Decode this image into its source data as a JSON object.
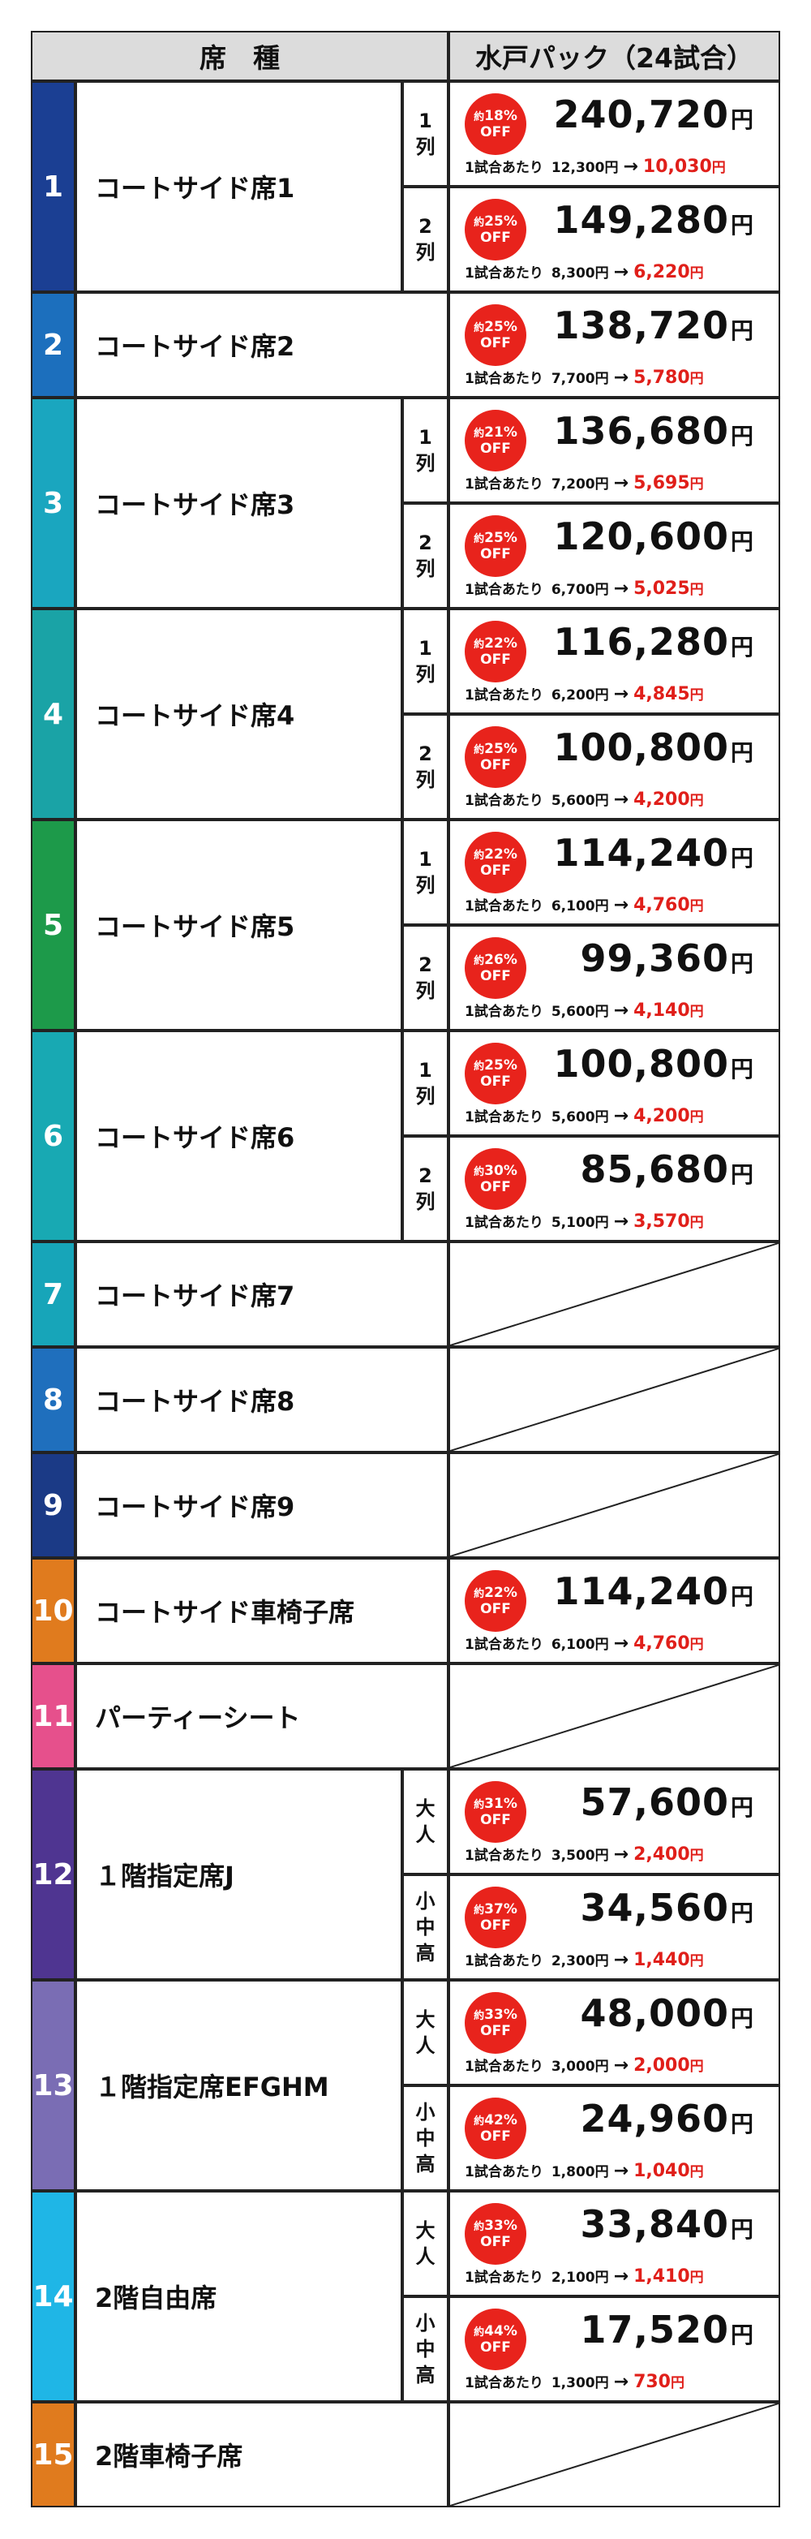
{
  "header": {
    "seat_type": "席　種",
    "pack": "水戸パック（24試合）"
  },
  "common": {
    "per_game_label": "1試合あたり",
    "yen": "円",
    "arrow": "→",
    "about": "約",
    "off": "OFF"
  },
  "seats": [
    {
      "num": "1",
      "name": "コートサイド席1",
      "color": "#1b3f93",
      "rows": [
        {
          "sub": "1\n列",
          "pct": "18%",
          "total": "240,720",
          "orig": "12,300",
          "disc": "10,030"
        },
        {
          "sub": "2\n列",
          "pct": "25%",
          "total": "149,280",
          "orig": "8,300",
          "disc": "6,220"
        }
      ]
    },
    {
      "num": "2",
      "name": "コートサイド席2",
      "color": "#1c6fbd",
      "rows": [
        {
          "sub": "",
          "pct": "25%",
          "total": "138,720",
          "orig": "7,700",
          "disc": "5,780"
        }
      ]
    },
    {
      "num": "3",
      "name": "コートサイド席3",
      "color": "#1aa6bf",
      "rows": [
        {
          "sub": "1\n列",
          "pct": "21%",
          "total": "136,680",
          "orig": "7,200",
          "disc": "5,695"
        },
        {
          "sub": "2\n列",
          "pct": "25%",
          "total": "120,600",
          "orig": "6,700",
          "disc": "5,025"
        }
      ]
    },
    {
      "num": "4",
      "name": "コートサイド席4",
      "color": "#1aa3a6",
      "rows": [
        {
          "sub": "1\n列",
          "pct": "22%",
          "total": "116,280",
          "orig": "6,200",
          "disc": "4,845"
        },
        {
          "sub": "2\n列",
          "pct": "25%",
          "total": "100,800",
          "orig": "5,600",
          "disc": "4,200"
        }
      ]
    },
    {
      "num": "5",
      "name": "コートサイド席5",
      "color": "#1d9a4a",
      "rows": [
        {
          "sub": "1\n列",
          "pct": "22%",
          "total": "114,240",
          "orig": "6,100",
          "disc": "4,760"
        },
        {
          "sub": "2\n列",
          "pct": "26%",
          "total": "99,360",
          "orig": "5,600",
          "disc": "4,140"
        }
      ]
    },
    {
      "num": "6",
      "name": "コートサイド席6",
      "color": "#18a9b3",
      "rows": [
        {
          "sub": "1\n列",
          "pct": "25%",
          "total": "100,800",
          "orig": "5,600",
          "disc": "4,200"
        },
        {
          "sub": "2\n列",
          "pct": "30%",
          "total": "85,680",
          "orig": "5,100",
          "disc": "3,570"
        }
      ]
    },
    {
      "num": "7",
      "name": "コートサイド席7",
      "color": "#17a5b9",
      "rows": []
    },
    {
      "num": "8",
      "name": "コートサイド席8",
      "color": "#1f6fbd",
      "rows": []
    },
    {
      "num": "9",
      "name": "コートサイド席9",
      "color": "#1b3a86",
      "rows": []
    },
    {
      "num": "10",
      "name": "コートサイド車椅子席",
      "color": "#e07b1e",
      "rows": [
        {
          "sub": "",
          "pct": "22%",
          "total": "114,240",
          "orig": "6,100",
          "disc": "4,760"
        }
      ]
    },
    {
      "num": "11",
      "name": "パーティーシート",
      "color": "#e6508c",
      "rows": []
    },
    {
      "num": "12",
      "name": "１階指定席J",
      "color": "#4f3591",
      "rows": [
        {
          "sub": "大\n人",
          "pct": "31%",
          "total": "57,600",
          "orig": "3,500",
          "disc": "2,400"
        },
        {
          "sub": "小\n中\n高",
          "pct": "37%",
          "total": "34,560",
          "orig": "2,300",
          "disc": "1,440"
        }
      ]
    },
    {
      "num": "13",
      "name": "１階指定席EFGHM",
      "color": "#7a6db4",
      "rows": [
        {
          "sub": "大\n人",
          "pct": "33%",
          "total": "48,000",
          "orig": "3,000",
          "disc": "2,000"
        },
        {
          "sub": "小\n中\n高",
          "pct": "42%",
          "total": "24,960",
          "orig": "1,800",
          "disc": "1,040"
        }
      ]
    },
    {
      "num": "14",
      "name": "2階自由席",
      "color": "#1fb6e6",
      "rows": [
        {
          "sub": "大\n人",
          "pct": "33%",
          "total": "33,840",
          "orig": "2,100",
          "disc": "1,410"
        },
        {
          "sub": "小\n中\n高",
          "pct": "44%",
          "total": "17,520",
          "orig": "1,300",
          "disc": "730"
        }
      ]
    },
    {
      "num": "15",
      "name": "2階車椅子席",
      "color": "#e07b1e",
      "rows": []
    }
  ]
}
